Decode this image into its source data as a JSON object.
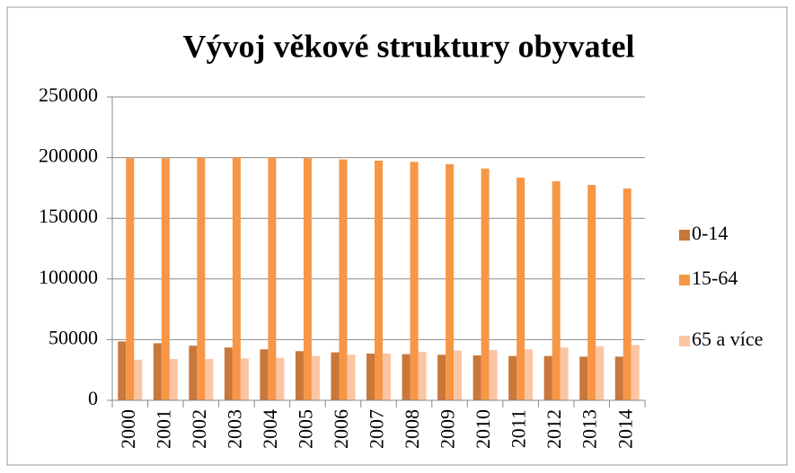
{
  "chart_data": {
    "type": "bar",
    "title": "Vývoj věkové struktury obyvatel",
    "categories": [
      "2000",
      "2001",
      "2002",
      "2003",
      "2004",
      "2005",
      "2006",
      "2007",
      "2008",
      "2009",
      "2010",
      "2011",
      "2012",
      "2013",
      "2014"
    ],
    "series": [
      {
        "name": "0-14",
        "color": "#c9773a",
        "values": [
          48500,
          47000,
          45000,
          43500,
          42000,
          40500,
          39500,
          38500,
          38000,
          37500,
          37000,
          36500,
          36500,
          36000,
          36000
        ]
      },
      {
        "name": "15-64",
        "color": "#f79646",
        "values": [
          199500,
          199500,
          200000,
          200000,
          200000,
          199500,
          198500,
          197500,
          196500,
          194500,
          191000,
          183500,
          180500,
          177500,
          174500
        ]
      },
      {
        "name": "65 a více",
        "color": "#fbc5a4",
        "values": [
          33500,
          34000,
          34000,
          34500,
          35000,
          36500,
          37500,
          38500,
          40000,
          41000,
          41500,
          42000,
          43500,
          44500,
          45500
        ]
      }
    ],
    "ylim": [
      0,
      250000
    ],
    "yticks": [
      0,
      50000,
      100000,
      150000,
      200000,
      250000
    ],
    "grid": true,
    "legend": "right"
  }
}
